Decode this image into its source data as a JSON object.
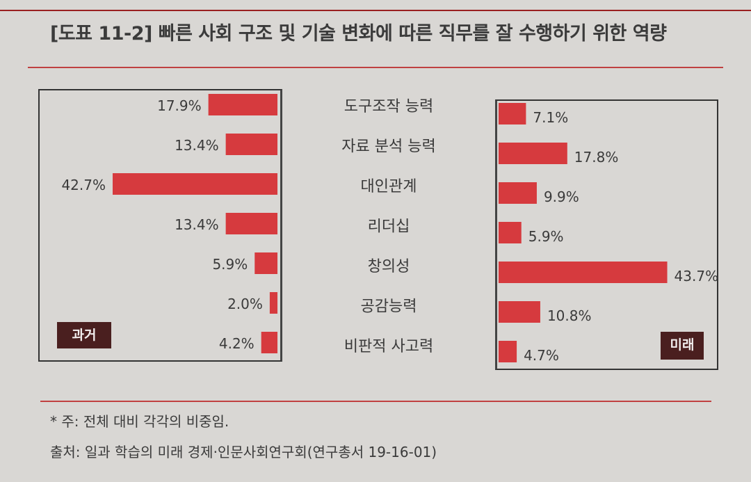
{
  "title": "[도표 11-2] 빠른 사회 구조 및 기술 변화에 따른 직무를 잘 수행하기 위한 역량",
  "tags": {
    "past": "과거",
    "future": "미래"
  },
  "notes": {
    "note": "* 주: 전체 대비 각각의 비중임.",
    "source": "출처: 일과 학습의 미래 경제·인문사회연구회(연구총서 19-16-01)"
  },
  "colors": {
    "bar": "#d63a3e",
    "frame": "#333333",
    "tag_bg": "#4a1f1f",
    "rule": "#c04040"
  },
  "chart_data": {
    "type": "bar",
    "orientation": "horizontal",
    "categories": [
      "도구조작 능력",
      "자료 분석 능력",
      "대인관계",
      "리더십",
      "창의성",
      "공감능력",
      "비판적 사고력"
    ],
    "series": [
      {
        "name": "과거",
        "values": [
          17.9,
          13.4,
          42.7,
          13.4,
          5.9,
          2.0,
          4.2
        ],
        "labels": [
          "17.9%",
          "13.4%",
          "42.7%",
          "13.4%",
          "5.9%",
          "2.0%",
          "4.2%"
        ]
      },
      {
        "name": "미래",
        "values": [
          7.1,
          17.8,
          9.9,
          5.9,
          43.7,
          10.8,
          4.7
        ],
        "labels": [
          "7.1%",
          "17.8%",
          "9.9%",
          "5.9%",
          "43.7%",
          "10.8%",
          "4.7%"
        ]
      }
    ],
    "unit": "%",
    "layout": "butterfly"
  }
}
